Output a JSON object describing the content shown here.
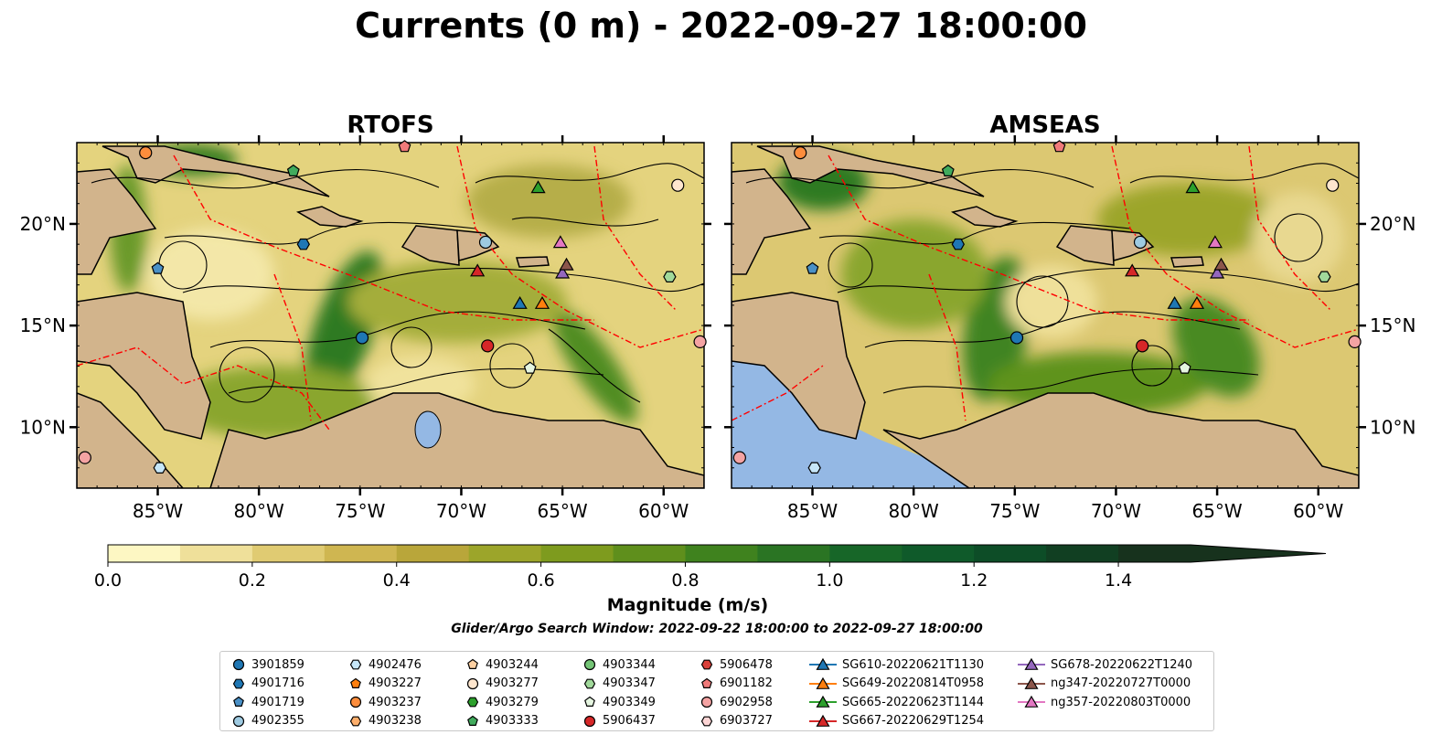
{
  "title": "Currents (0 m) - 2022-09-27 18:00:00",
  "panels": [
    {
      "title": "RTOFS"
    },
    {
      "title": "AMSEAS"
    }
  ],
  "colorbar": {
    "label": "Magnitude (m/s)",
    "ticks": [
      "0.0",
      "0.2",
      "0.4",
      "0.6",
      "0.8",
      "1.0",
      "1.2",
      "1.4"
    ],
    "colors": [
      "#fdf7c3",
      "#efe09a",
      "#e0cb72",
      "#cfb651",
      "#b9a63a",
      "#9ca52a",
      "#7e9b1e",
      "#5f8f1c",
      "#3f821e",
      "#2a7423",
      "#176628",
      "#0f5a2a",
      "#0d4d27",
      "#113f22",
      "#17321d"
    ]
  },
  "search_window": "Glider/Argo Search Window: 2022-09-22 18:00:00 to 2022-09-27 18:00:00",
  "colors": {
    "land": "#d2b48c",
    "water": "#94b8e4",
    "boundary": "#ff0000",
    "stream": "#000000"
  },
  "chart_data": [
    {
      "type": "heatmap",
      "title": "RTOFS",
      "xlabel": "",
      "ylabel": "",
      "xlim": [
        -89,
        -58
      ],
      "ylim": [
        7,
        24
      ],
      "x_ticks": [
        -85,
        -80,
        -75,
        -70,
        -65,
        -60
      ],
      "y_ticks": [
        10,
        15,
        20
      ],
      "x_tick_labels": [
        "85°W",
        "80°W",
        "75°W",
        "70°W",
        "65°W",
        "60°W"
      ],
      "y_tick_labels": [
        "10°N",
        "15°N",
        "20°N"
      ],
      "colorbar_range": [
        0.0,
        1.5
      ],
      "markers": [
        {
          "id": "3901859",
          "lon": -74.9,
          "lat": 14.4
        },
        {
          "id": "4902476",
          "lon": -84.9,
          "lat": 8.0
        },
        {
          "id": "4901719",
          "lon": -85.0,
          "lat": 17.8
        },
        {
          "id": "4902355",
          "lon": -68.8,
          "lat": 19.1
        },
        {
          "id": "4901716",
          "lon": -77.8,
          "lat": 19.0
        },
        {
          "id": "4903237",
          "lon": -85.6,
          "lat": 23.5
        },
        {
          "id": "4903277",
          "lon": -59.3,
          "lat": 21.9
        },
        {
          "id": "4903333",
          "lon": -78.3,
          "lat": 22.6
        },
        {
          "id": "4903347",
          "lon": -59.7,
          "lat": 17.4
        },
        {
          "id": "4903349",
          "lon": -66.6,
          "lat": 12.9
        },
        {
          "id": "5906437",
          "lon": -68.7,
          "lat": 14.0
        },
        {
          "id": "6901182",
          "lon": -72.8,
          "lat": 23.8
        },
        {
          "id": "6902958",
          "lon": -88.6,
          "lat": 8.5
        },
        {
          "id": "6902958",
          "lon": -58.2,
          "lat": 14.2
        },
        {
          "id": "SG610-20220621T1130",
          "lon": -67.1,
          "lat": 16.1
        },
        {
          "id": "SG649-20220814T0958",
          "lon": -66.0,
          "lat": 16.1
        },
        {
          "id": "SG665-20220623T1144",
          "lon": -66.2,
          "lat": 21.8
        },
        {
          "id": "SG667-20220629T1254",
          "lon": -69.2,
          "lat": 17.7
        },
        {
          "id": "SG678-20220622T1240",
          "lon": -65.0,
          "lat": 17.6
        },
        {
          "id": "ng347-20220727T0000",
          "lon": -64.8,
          "lat": 18.0
        },
        {
          "id": "ng357-20220803T0000",
          "lon": -65.1,
          "lat": 19.1
        }
      ]
    },
    {
      "type": "heatmap",
      "title": "AMSEAS",
      "xlabel": "",
      "ylabel": "",
      "xlim": [
        -89,
        -58
      ],
      "ylim": [
        7,
        24
      ],
      "x_ticks": [
        -85,
        -80,
        -75,
        -70,
        -65,
        -60
      ],
      "y_ticks": [
        10,
        15,
        20
      ],
      "x_tick_labels": [
        "85°W",
        "80°W",
        "75°W",
        "70°W",
        "65°W",
        "60°W"
      ],
      "y_tick_labels": [
        "10°N",
        "15°N",
        "20°N"
      ],
      "colorbar_range": [
        0.0,
        1.5
      ],
      "markers": [
        {
          "id": "3901859",
          "lon": -74.9,
          "lat": 14.4
        },
        {
          "id": "4902476",
          "lon": -84.9,
          "lat": 8.0
        },
        {
          "id": "4901719",
          "lon": -85.0,
          "lat": 17.8
        },
        {
          "id": "4902355",
          "lon": -68.8,
          "lat": 19.1
        },
        {
          "id": "4901716",
          "lon": -77.8,
          "lat": 19.0
        },
        {
          "id": "4903237",
          "lon": -85.6,
          "lat": 23.5
        },
        {
          "id": "4903277",
          "lon": -59.3,
          "lat": 21.9
        },
        {
          "id": "4903333",
          "lon": -78.3,
          "lat": 22.6
        },
        {
          "id": "4903347",
          "lon": -59.7,
          "lat": 17.4
        },
        {
          "id": "4903349",
          "lon": -66.6,
          "lat": 12.9
        },
        {
          "id": "5906437",
          "lon": -68.7,
          "lat": 14.0
        },
        {
          "id": "6901182",
          "lon": -72.8,
          "lat": 23.8
        },
        {
          "id": "6902958",
          "lon": -88.6,
          "lat": 8.5
        },
        {
          "id": "6902958",
          "lon": -58.2,
          "lat": 14.2
        },
        {
          "id": "SG610-20220621T1130",
          "lon": -67.1,
          "lat": 16.1
        },
        {
          "id": "SG649-20220814T0958",
          "lon": -66.0,
          "lat": 16.1
        },
        {
          "id": "SG665-20220623T1144",
          "lon": -66.2,
          "lat": 21.8
        },
        {
          "id": "SG667-20220629T1254",
          "lon": -69.2,
          "lat": 17.7
        },
        {
          "id": "SG678-20220622T1240",
          "lon": -65.0,
          "lat": 17.6
        },
        {
          "id": "ng347-20220727T0000",
          "lon": -64.8,
          "lat": 18.0
        },
        {
          "id": "ng357-20220803T0000",
          "lon": -65.1,
          "lat": 19.1
        }
      ]
    }
  ],
  "legend": [
    {
      "label": "3901859",
      "marker": "circle",
      "color": "#1f77b4"
    },
    {
      "label": "4901716",
      "marker": "hexagon",
      "color": "#1f77b4"
    },
    {
      "label": "4901719",
      "marker": "pentagon",
      "color": "#4a90c6"
    },
    {
      "label": "4902355",
      "marker": "circle",
      "color": "#9ecae1"
    },
    {
      "label": "4902476",
      "marker": "hexagon",
      "color": "#c6e6f8"
    },
    {
      "label": "4903227",
      "marker": "pentagon",
      "color": "#ff7f0e"
    },
    {
      "label": "4903237",
      "marker": "circle",
      "color": "#fd8d3c"
    },
    {
      "label": "4903238",
      "marker": "hexagon",
      "color": "#fdae6b"
    },
    {
      "label": "4903244",
      "marker": "pentagon",
      "color": "#fdd0a2"
    },
    {
      "label": "4903277",
      "marker": "circle",
      "color": "#fee6ce"
    },
    {
      "label": "4903279",
      "marker": "hexagon",
      "color": "#2ca02c"
    },
    {
      "label": "4903333",
      "marker": "pentagon",
      "color": "#41ab5d"
    },
    {
      "label": "4903344",
      "marker": "circle",
      "color": "#74c476"
    },
    {
      "label": "4903347",
      "marker": "hexagon",
      "color": "#a1d99b"
    },
    {
      "label": "4903349",
      "marker": "pentagon",
      "color": "#e5f5e0"
    },
    {
      "label": "5906437",
      "marker": "circle",
      "color": "#d62728"
    },
    {
      "label": "5906478",
      "marker": "hexagon",
      "color": "#d9403a"
    },
    {
      "label": "6901182",
      "marker": "pentagon",
      "color": "#f07a7a"
    },
    {
      "label": "6902958",
      "marker": "circle",
      "color": "#f4a3a3"
    },
    {
      "label": "6903727",
      "marker": "hexagon",
      "color": "#fdd5d5"
    },
    {
      "label": "SG610-20220621T1130",
      "marker": "triangle",
      "color": "#1f77b4"
    },
    {
      "label": "SG649-20220814T0958",
      "marker": "triangle",
      "color": "#ff7f0e"
    },
    {
      "label": "SG665-20220623T1144",
      "marker": "triangle",
      "color": "#2ca02c"
    },
    {
      "label": "SG667-20220629T1254",
      "marker": "triangle",
      "color": "#d62728"
    },
    {
      "label": "SG678-20220622T1240",
      "marker": "triangle",
      "color": "#9467bd"
    },
    {
      "label": "ng347-20220727T0000",
      "marker": "triangle",
      "color": "#8c564b"
    },
    {
      "label": "ng357-20220803T0000",
      "marker": "triangle",
      "color": "#e377c2"
    }
  ]
}
